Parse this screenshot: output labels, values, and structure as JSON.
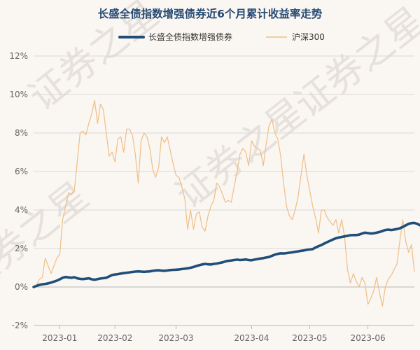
{
  "chart_data": {
    "type": "line",
    "title": "长盛全债指数增强债券近6个月累计收益率走势",
    "xlabel": "",
    "ylabel": "",
    "ylim": [
      -2,
      12
    ],
    "yticks": [
      "-2%",
      "0%",
      "2%",
      "4%",
      "6%",
      "8%",
      "10%",
      "12%"
    ],
    "ytick_values": [
      -2,
      0,
      2,
      4,
      6,
      8,
      10,
      12
    ],
    "xticks": [
      "2023-01",
      "2023-02",
      "2023-03",
      "2023-04",
      "2023-05",
      "2023-06"
    ],
    "xtick_positions": [
      9,
      28,
      49,
      75,
      95,
      115
    ],
    "x_count": 132,
    "legend_position": "top-center",
    "grid": "horizontal",
    "series": [
      {
        "name": "长盛全债指数增强债券",
        "color": "#1f4e79",
        "values": [
          0.0,
          0.06,
          0.11,
          0.14,
          0.16,
          0.19,
          0.23,
          0.28,
          0.33,
          0.4,
          0.48,
          0.52,
          0.5,
          0.48,
          0.51,
          0.45,
          0.42,
          0.41,
          0.43,
          0.45,
          0.4,
          0.38,
          0.41,
          0.44,
          0.46,
          0.48,
          0.55,
          0.62,
          0.65,
          0.67,
          0.7,
          0.72,
          0.74,
          0.76,
          0.78,
          0.8,
          0.81,
          0.8,
          0.79,
          0.8,
          0.81,
          0.84,
          0.86,
          0.87,
          0.85,
          0.84,
          0.86,
          0.88,
          0.89,
          0.9,
          0.91,
          0.93,
          0.95,
          0.97,
          1.0,
          1.04,
          1.09,
          1.13,
          1.17,
          1.2,
          1.18,
          1.17,
          1.2,
          1.22,
          1.25,
          1.28,
          1.33,
          1.36,
          1.38,
          1.4,
          1.42,
          1.4,
          1.41,
          1.43,
          1.4,
          1.39,
          1.42,
          1.45,
          1.48,
          1.5,
          1.53,
          1.56,
          1.62,
          1.68,
          1.72,
          1.75,
          1.74,
          1.76,
          1.78,
          1.8,
          1.83,
          1.85,
          1.88,
          1.9,
          1.93,
          1.95,
          1.97,
          2.05,
          2.12,
          2.18,
          2.26,
          2.33,
          2.4,
          2.47,
          2.53,
          2.57,
          2.6,
          2.63,
          2.66,
          2.69,
          2.7,
          2.7,
          2.72,
          2.78,
          2.82,
          2.8,
          2.78,
          2.79,
          2.82,
          2.86,
          2.91,
          2.96,
          2.98,
          2.96,
          2.98,
          3.01,
          3.05,
          3.12,
          3.2,
          3.28,
          3.32,
          3.33,
          3.28,
          3.2,
          3.16,
          3.17
        ]
      },
      {
        "name": "沪深300",
        "color": "#efbf85",
        "values": [
          0.0,
          0.1,
          0.4,
          0.5,
          1.5,
          1.1,
          0.7,
          1.1,
          1.5,
          1.7,
          3.5,
          4.2,
          4.9,
          4.8,
          5.0,
          6.5,
          8.0,
          8.1,
          7.9,
          8.5,
          9.0,
          9.7,
          8.5,
          9.5,
          9.2,
          8.0,
          6.8,
          7.0,
          6.5,
          7.7,
          7.8,
          7.0,
          8.2,
          8.2,
          7.9,
          6.9,
          5.4,
          7.6,
          8.0,
          7.8,
          7.2,
          6.1,
          5.7,
          6.2,
          7.8,
          7.5,
          7.8,
          7.1,
          6.4,
          5.8,
          5.7,
          5.2,
          4.6,
          3.0,
          4.0,
          3.0,
          3.8,
          3.9,
          3.1,
          2.9,
          3.7,
          4.2,
          4.5,
          5.4,
          5.2,
          4.8,
          4.4,
          4.5,
          4.4,
          5.2,
          6.0,
          6.9,
          7.2,
          7.0,
          6.3,
          7.6,
          7.3,
          7.2,
          7.1,
          6.3,
          7.4,
          8.4,
          8.7,
          8.0,
          7.7,
          6.8,
          5.4,
          4.2,
          3.7,
          3.5,
          4.0,
          4.7,
          5.8,
          6.9,
          5.8,
          5.0,
          4.2,
          3.6,
          2.8,
          4.0,
          4.0,
          3.6,
          3.4,
          3.2,
          3.5,
          2.8,
          3.5,
          2.6,
          0.9,
          0.2,
          0.7,
          0.3,
          0.0,
          0.5,
          0.2,
          -0.9,
          -0.6,
          -0.2,
          0.5,
          -0.3,
          -1.0,
          0.0,
          0.4,
          0.6,
          0.9,
          1.2,
          2.4,
          3.5,
          2.4,
          1.8,
          2.2,
          0.8
        ]
      }
    ]
  },
  "watermark": "证券之星"
}
